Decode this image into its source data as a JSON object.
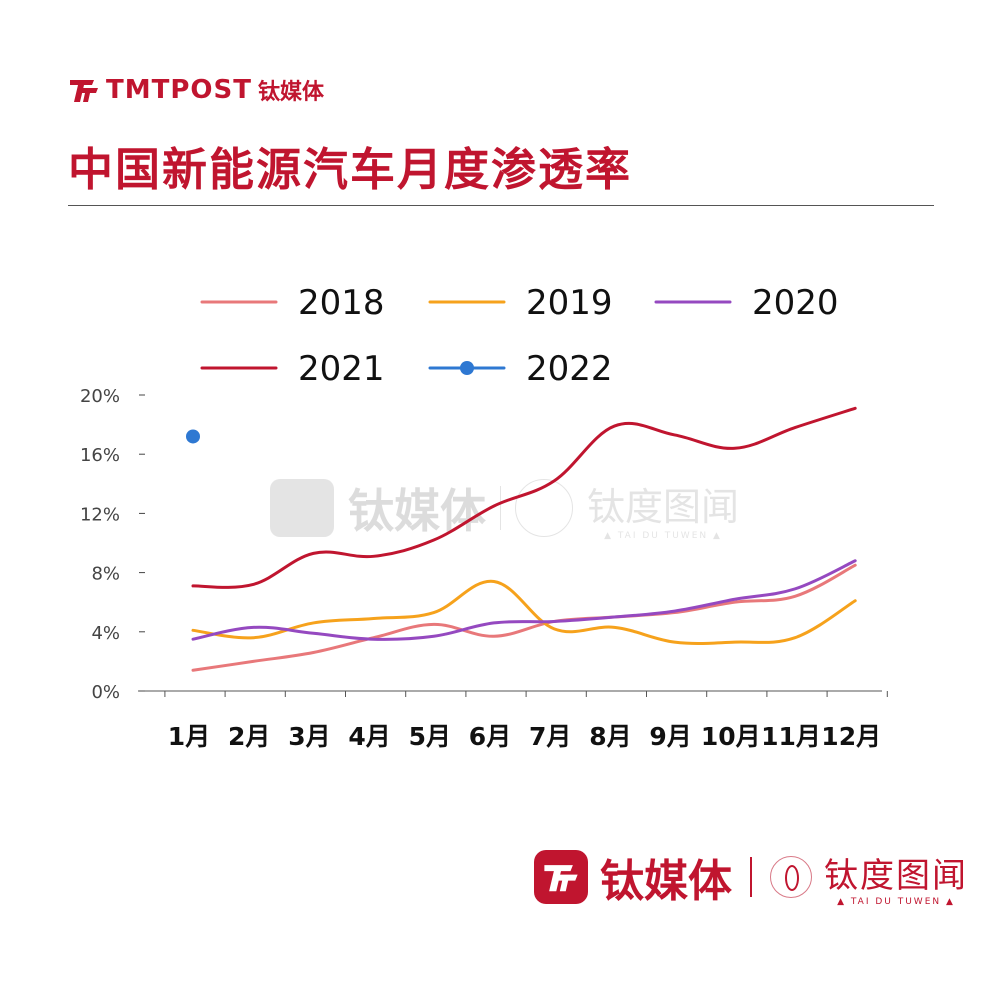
{
  "header": {
    "brand_en": "TMTPOST",
    "brand_cn": "钛媒体",
    "title": "中国新能源汽车月度渗透率"
  },
  "watermark": {
    "brand_cn": "钛媒体",
    "sub_brand_cn": "钛度图闻",
    "sub_brand_en": "▲ TAI DU TUWEN ▲"
  },
  "footer": {
    "brand_cn": "钛媒体",
    "sub_brand_cn": "钛度图闻",
    "sub_brand_en": "▲ TAI DU TUWEN ▲"
  },
  "colors": {
    "brand": "#c0152f",
    "s2018": "#e8787a",
    "s2019": "#f6a21c",
    "s2020": "#9549c0",
    "s2021": "#c0152f",
    "s2022": "#2e78d2"
  },
  "chart_data": {
    "type": "line",
    "categories": [
      "1月",
      "2月",
      "3月",
      "4月",
      "5月",
      "6月",
      "7月",
      "8月",
      "9月",
      "10月",
      "11月",
      "12月"
    ],
    "y_ticks": [
      "0%",
      "4%",
      "8%",
      "12%",
      "16%",
      "20%"
    ],
    "ylim": [
      0,
      20
    ],
    "y_unit": "%",
    "legend_position": "top",
    "grid": false,
    "series": [
      {
        "name": "2018",
        "color": "#e8787a",
        "values": [
          1.4,
          2.0,
          2.6,
          3.6,
          4.5,
          3.7,
          4.7,
          5.0,
          5.3,
          6.0,
          6.4,
          8.5
        ]
      },
      {
        "name": "2019",
        "color": "#f6a21c",
        "values": [
          4.1,
          3.6,
          4.6,
          4.9,
          5.3,
          7.4,
          4.2,
          4.3,
          3.3,
          3.3,
          3.6,
          6.1
        ]
      },
      {
        "name": "2020",
        "color": "#9549c0",
        "values": [
          3.5,
          4.3,
          3.9,
          3.5,
          3.7,
          4.6,
          4.7,
          5.0,
          5.4,
          6.2,
          6.9,
          8.8
        ]
      },
      {
        "name": "2021",
        "color": "#c0152f",
        "values": [
          7.1,
          7.2,
          9.3,
          9.1,
          10.2,
          12.5,
          14.2,
          17.9,
          17.3,
          16.4,
          17.8,
          19.1
        ]
      },
      {
        "name": "2022",
        "color": "#2e78d2",
        "values": [
          17.2,
          null,
          null,
          null,
          null,
          null,
          null,
          null,
          null,
          null,
          null,
          null
        ]
      }
    ]
  }
}
